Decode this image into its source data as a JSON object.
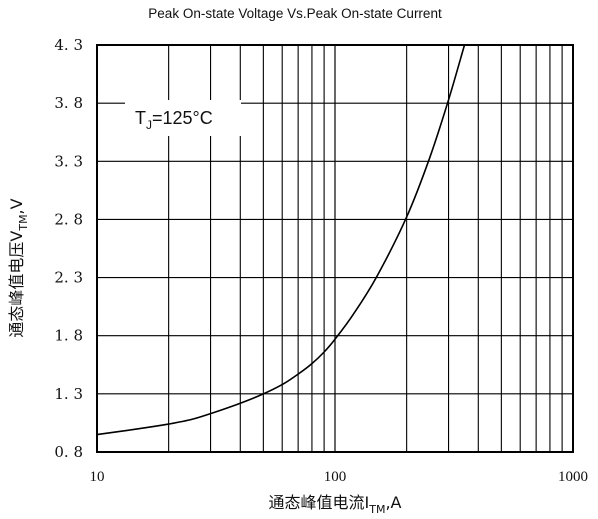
{
  "chart_data": {
    "type": "line",
    "title": "Peak On-state Voltage Vs.Peak On-state Current",
    "xlabel": {
      "prefix": "通态峰值电流I",
      "sub": "TM",
      "suffix": ",A"
    },
    "ylabel": {
      "prefix": "通态峰值电压V",
      "sub": "TM",
      "suffix": ",V"
    },
    "x_scale": "log",
    "xlim": [
      10,
      1000
    ],
    "ylim": [
      0.8,
      4.3
    ],
    "grid": true,
    "x_ticks": [
      10,
      100,
      1000
    ],
    "x_tick_labels": [
      "10",
      "100",
      "1000"
    ],
    "y_ticks": [
      0.8,
      1.3,
      1.8,
      2.3,
      2.8,
      3.3,
      3.8,
      4.3
    ],
    "y_tick_labels": [
      "0. 8",
      "1. 3",
      "1. 8",
      "2. 3",
      "2. 8",
      "3. 3",
      "3. 8",
      "4. 3"
    ],
    "annotation": {
      "prefix": "T",
      "sub": "J",
      "suffix": "=125°C"
    },
    "series": [
      {
        "x": [
          10,
          15,
          20,
          25,
          30,
          40,
          50,
          60,
          70,
          80,
          90,
          100,
          120,
          150,
          200,
          250,
          300,
          350
        ],
        "y": [
          0.95,
          1.0,
          1.04,
          1.08,
          1.13,
          1.22,
          1.3,
          1.38,
          1.47,
          1.56,
          1.66,
          1.77,
          1.99,
          2.31,
          2.82,
          3.33,
          3.83,
          4.3
        ]
      }
    ]
  }
}
